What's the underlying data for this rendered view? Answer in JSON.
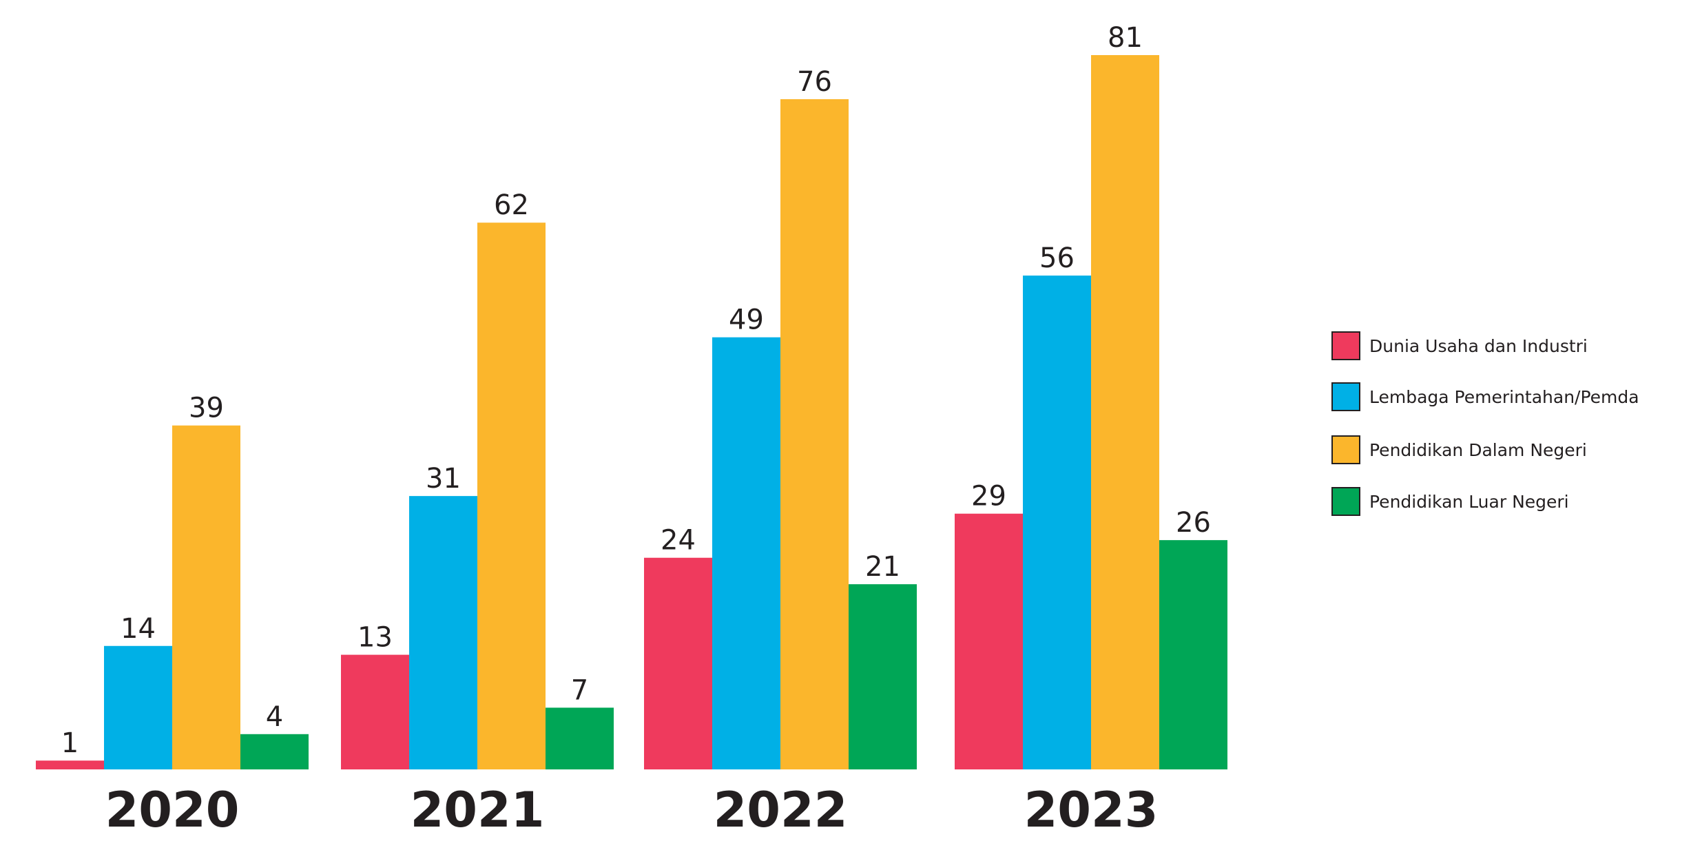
{
  "chart_data": {
    "type": "bar",
    "categories": [
      "2020",
      "2021",
      "2022",
      "2023"
    ],
    "series": [
      {
        "name": "Dunia Usaha dan Industri",
        "color": "#EF3A5D",
        "values": [
          1,
          13,
          24,
          29
        ]
      },
      {
        "name": "Lembaga Pemerintahan/Pemda",
        "color": "#00B0E6",
        "values": [
          14,
          31,
          49,
          56
        ]
      },
      {
        "name": "Pendidikan Dalam Negeri",
        "color": "#FBB62C",
        "values": [
          39,
          62,
          76,
          81
        ]
      },
      {
        "name": "Pendidikan Luar Negeri",
        "color": "#00A656",
        "values": [
          4,
          7,
          21,
          26
        ]
      }
    ],
    "title": "",
    "xlabel": "",
    "ylabel": "",
    "ylim": [
      0,
      81
    ],
    "grid": false,
    "data_labels": true,
    "legend_position": "right"
  }
}
